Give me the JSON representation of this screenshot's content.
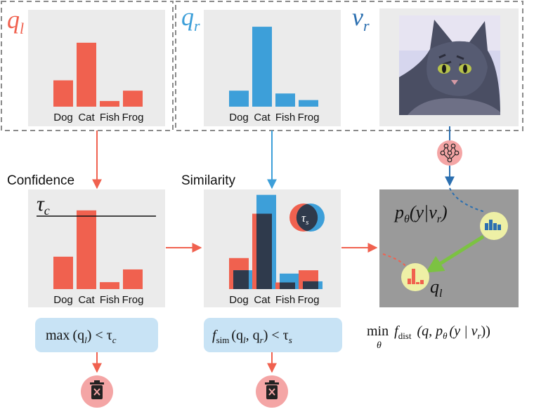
{
  "colors": {
    "red": "#f0614f",
    "blue": "#3d9fd9",
    "dark_blue": "#2b6fb0",
    "panel": "#ebebeb",
    "dark_panel": "#9a9a9a",
    "condition_box": "#c8e3f5",
    "bubble": "#eef0a6",
    "trash_circle": "#f4a5a5",
    "overlap": "#2f3a4c"
  },
  "labels": {
    "ql": "q",
    "ql_sub": "l",
    "qr": "q",
    "qr_sub": "r",
    "vr": "v",
    "vr_sub": "r",
    "confidence": "Confidence",
    "similarity": "Similarity",
    "tau_c": "τ",
    "tau_c_sub": "c",
    "tau_s": "τ",
    "tau_s_sub": "s",
    "ptheta": "p",
    "ptheta_sub": "θ",
    "ptheta_args": "(y|v",
    "ptheta_args_sub": "r",
    "ptheta_close": ")",
    "ql_small": "q",
    "ql_small_sub": "l"
  },
  "conditions": {
    "confidence_max": "max",
    "confidence_args": "(q",
    "confidence_args_sub": "l",
    "confidence_mid": ") < τ",
    "confidence_tau_sub": "c",
    "similarity_f": "f",
    "similarity_f_sub": "sim",
    "similarity_args": "(q",
    "similarity_args_sub1": "l",
    "similarity_comma": ", q",
    "similarity_args_sub2": "r",
    "similarity_mid": ") < τ",
    "similarity_tau_sub": "s"
  },
  "objective": {
    "min": "min",
    "min_sub": "θ",
    "f": "f",
    "f_sub": "dist",
    "args_a": "(q, p",
    "args_theta": "θ",
    "args_b": "(y | v",
    "args_r": "r",
    "args_c": "))"
  },
  "chart_data": [
    {
      "type": "bar",
      "panel": "q_l",
      "categories": [
        "Dog",
        "Cat",
        "Fish",
        "Frog"
      ],
      "values": [
        0.28,
        0.68,
        0.06,
        0.17
      ]
    },
    {
      "type": "bar",
      "panel": "q_r",
      "categories": [
        "Dog",
        "Cat",
        "Fish",
        "Frog"
      ],
      "values": [
        0.17,
        0.85,
        0.14,
        0.07
      ]
    },
    {
      "type": "bar",
      "panel": "confidence",
      "categories": [
        "Dog",
        "Cat",
        "Fish",
        "Frog"
      ],
      "values": [
        0.28,
        0.68,
        0.06,
        0.17
      ],
      "threshold": "τc"
    },
    {
      "type": "bar",
      "panel": "similarity",
      "categories": [
        "Dog",
        "Cat",
        "Fish",
        "Frog"
      ],
      "series": [
        {
          "values": [
            0.28,
            0.68,
            0.06,
            0.17
          ]
        },
        {
          "values": [
            0.17,
            0.85,
            0.14,
            0.07
          ]
        }
      ]
    }
  ]
}
